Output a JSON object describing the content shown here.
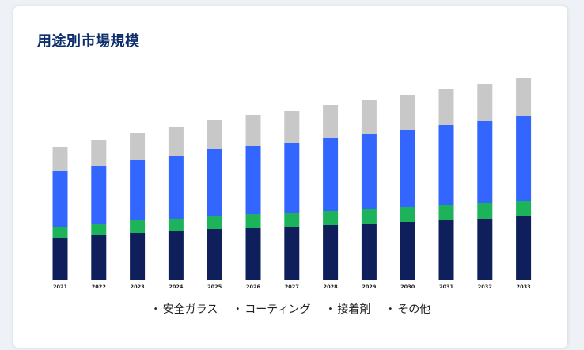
{
  "title": "用途別市場規模",
  "chart_data": {
    "type": "bar",
    "stacked": true,
    "categories": [
      "2021",
      "2022",
      "2023",
      "2024",
      "2025",
      "2026",
      "2027",
      "2028",
      "2029",
      "2030",
      "2031",
      "2032",
      "2033"
    ],
    "series": [
      {
        "name": "安全ガラス",
        "color": "#0f1f5c",
        "values": [
          53,
          56,
          59,
          61,
          64,
          65,
          67,
          69,
          71,
          73,
          75,
          77,
          80
        ]
      },
      {
        "name": "コーティング",
        "color": "#1db35a",
        "values": [
          14,
          15,
          16,
          16,
          17,
          18,
          18,
          18,
          18,
          19,
          19,
          20,
          20
        ]
      },
      {
        "name": "接着剤",
        "color": "#3266ff",
        "values": [
          70,
          73,
          77,
          80,
          84,
          86,
          88,
          92,
          95,
          98,
          102,
          104,
          107
        ]
      },
      {
        "name": "その他",
        "color": "#c8c8c8",
        "values": [
          31,
          33,
          34,
          36,
          37,
          39,
          40,
          42,
          43,
          44,
          45,
          47,
          48
        ]
      }
    ],
    "ylim": [
      0,
      260
    ],
    "grid": false,
    "legend_position": "bottom"
  }
}
